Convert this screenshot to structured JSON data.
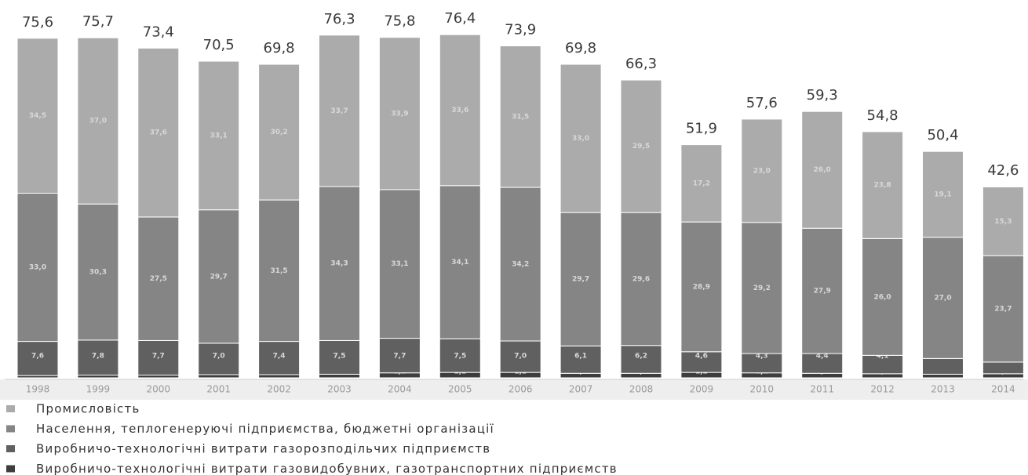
{
  "chart_data": {
    "type": "stacked-bar",
    "categories": [
      "1998",
      "1999",
      "2000",
      "2001",
      "2002",
      "2003",
      "2004",
      "2005",
      "2006",
      "2007",
      "2008",
      "2009",
      "2010",
      "2011",
      "2012",
      "2013",
      "2014"
    ],
    "series": [
      {
        "name": "Виробничо-технологічні витрати газовидобувних, газотранспортних підприємств",
        "color": "#3d3d3d",
        "values": [
          0.5,
          0.6,
          0.6,
          0.7,
          0.7,
          0.8,
          1.1,
          1.2,
          1.2,
          1.0,
          1.0,
          1.2,
          1.1,
          1.0,
          0.9,
          0.8,
          0.9
        ],
        "value_labels": [
          "0,5",
          "0,6",
          "0,6",
          "0,7",
          "0,7",
          "0,8",
          "1,1",
          "1,2",
          "1,2",
          "1,0",
          "1,0",
          "1,2",
          "1,1",
          "1,0",
          "0,9",
          "0,8",
          "0,9"
        ]
      },
      {
        "name": "Виробничо-технологічні витрати газорозподільчих підприємств",
        "color": "#606060",
        "values": [
          7.6,
          7.8,
          7.7,
          7.0,
          7.4,
          7.5,
          7.7,
          7.5,
          7.0,
          6.1,
          6.2,
          4.6,
          4.3,
          4.4,
          4.1,
          3.5,
          2.6
        ],
        "value_labels": [
          "7,6",
          "7,8",
          "7,7",
          "7,0",
          "7,4",
          "7,5",
          "7,7",
          "7,5",
          "7,0",
          "6,1",
          "6,2",
          "4,6",
          "4,3",
          "4,4",
          "4,1",
          "3,5",
          "2,6"
        ]
      },
      {
        "name": "Населення, теплогенеруючі підприємства, бюджетні організації",
        "color": "#858585",
        "values": [
          33.0,
          30.3,
          27.5,
          29.7,
          31.5,
          34.3,
          33.1,
          34.1,
          34.2,
          29.7,
          29.6,
          28.9,
          29.2,
          27.9,
          26.0,
          27.0,
          23.7
        ],
        "value_labels": [
          "33,0",
          "30,3",
          "27,5",
          "29,7",
          "31,5",
          "34,3",
          "33,1",
          "34,1",
          "34,2",
          "29,7",
          "29,6",
          "28,9",
          "29,2",
          "27,9",
          "26,0",
          "27,0",
          "23,7"
        ]
      },
      {
        "name": "Промисловість",
        "color": "#ababab",
        "values": [
          34.5,
          37.0,
          37.6,
          33.1,
          30.2,
          33.7,
          33.9,
          33.6,
          31.5,
          33.0,
          29.5,
          17.2,
          23.0,
          26.0,
          23.8,
          19.1,
          15.3
        ],
        "value_labels": [
          "34,5",
          "37,0",
          "37,6",
          "33,1",
          "30,2",
          "33,7",
          "33,9",
          "33,6",
          "31,5",
          "33,0",
          "29,5",
          "17,2",
          "23,0",
          "26,0",
          "23,8",
          "19,1",
          "15,3"
        ]
      }
    ],
    "totals": [
      75.6,
      75.7,
      73.4,
      70.5,
      69.8,
      76.3,
      75.8,
      76.4,
      73.9,
      69.8,
      66.3,
      51.9,
      57.6,
      59.3,
      54.8,
      50.4,
      42.6
    ],
    "total_labels": [
      "75,6",
      "75,7",
      "73,4",
      "70,5",
      "69,8",
      "76,3",
      "75,8",
      "76,4",
      "73,9",
      "69,8",
      "66,3",
      "51,9",
      "57,6",
      "59,3",
      "54,8",
      "50,4",
      "42,6"
    ]
  }
}
